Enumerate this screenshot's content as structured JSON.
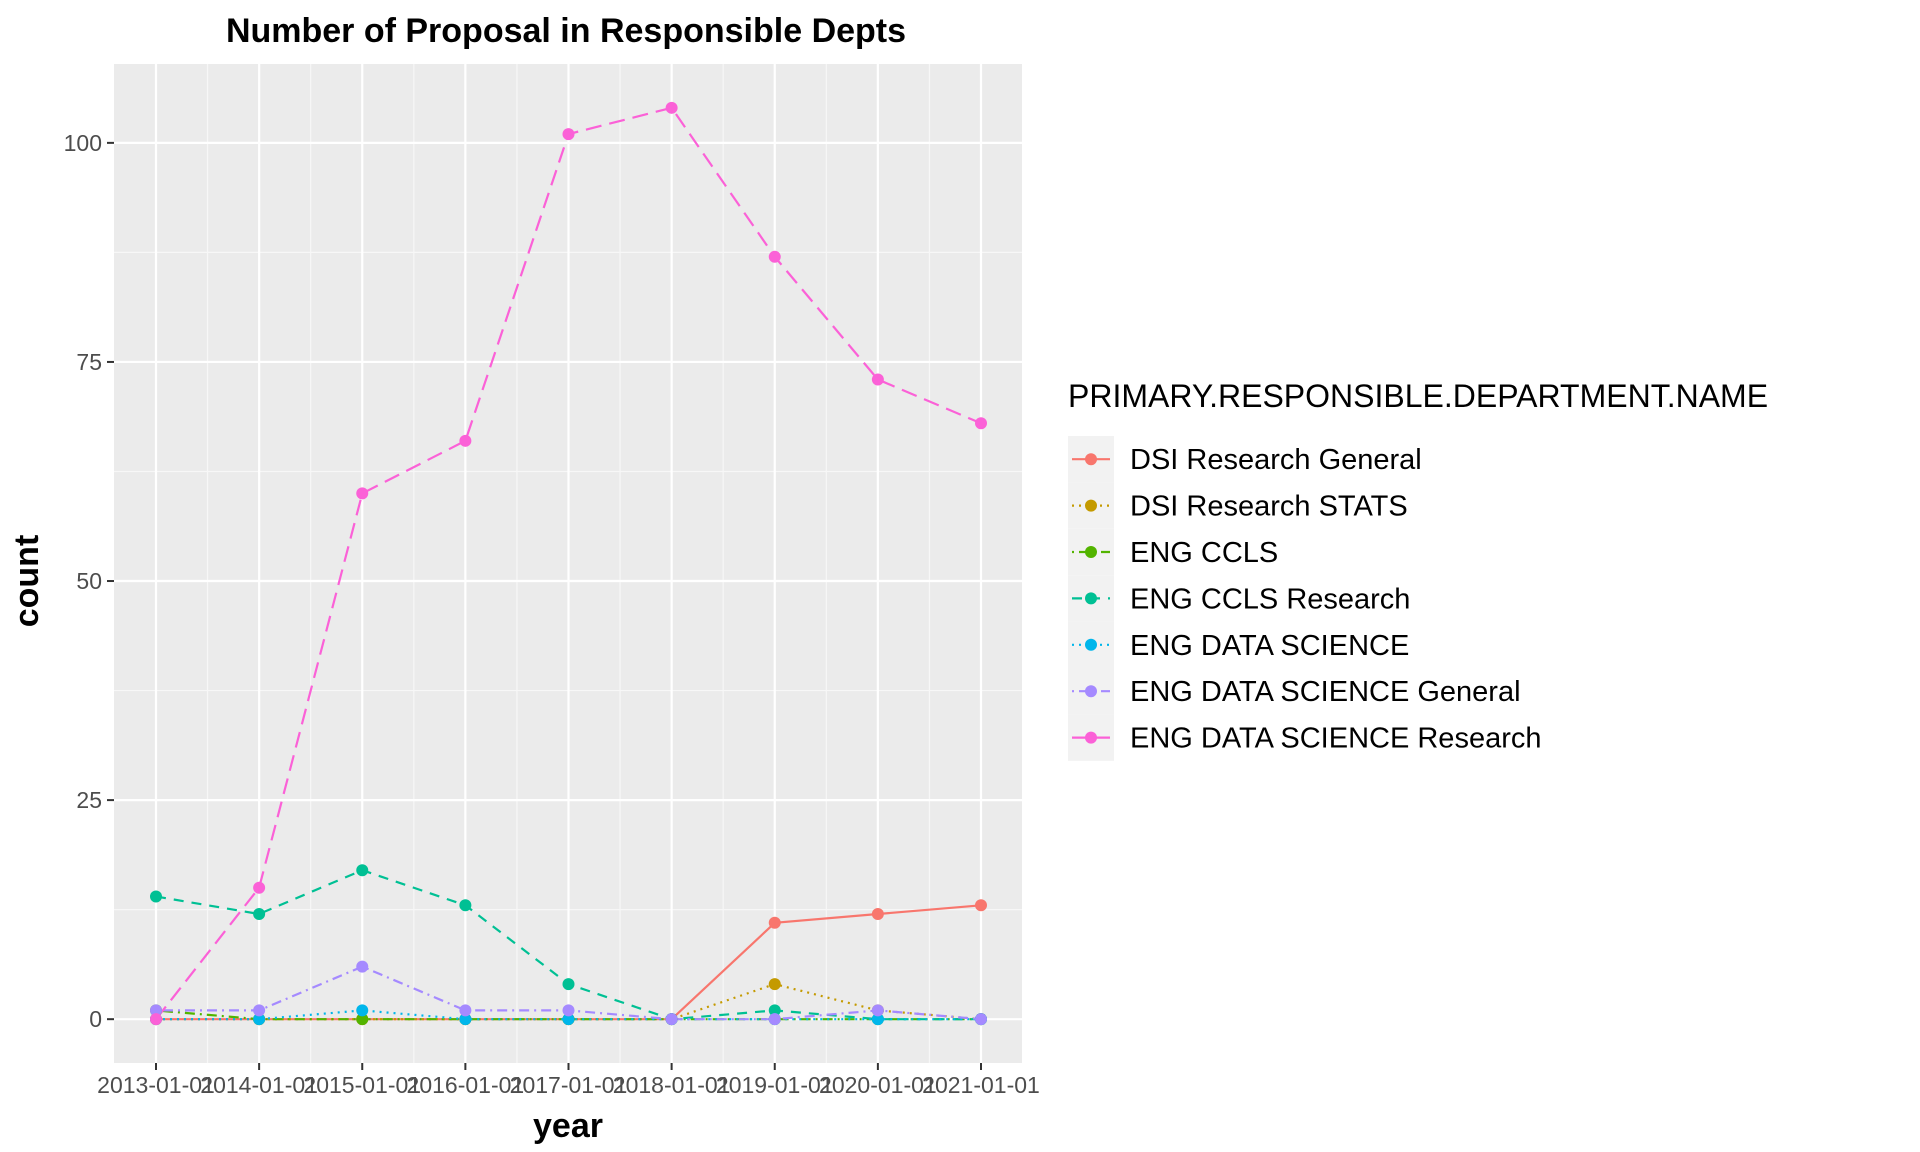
{
  "chart_data": {
    "type": "line",
    "title": "Number of Proposal in Responsible Depts",
    "xlabel": "year",
    "ylabel": "count",
    "x": [
      "2013-01-01",
      "2014-01-01",
      "2015-01-01",
      "2016-01-01",
      "2017-01-01",
      "2018-01-01",
      "2019-01-01",
      "2020-01-01",
      "2021-01-01"
    ],
    "y_ticks": [
      0,
      25,
      50,
      75,
      100
    ],
    "ylim": [
      -5,
      109
    ],
    "grid": true,
    "legend": {
      "title": "PRIMARY.RESPONSIBLE.DEPARTMENT.NAME",
      "placement": "right"
    },
    "series": [
      {
        "name": "DSI Research General",
        "color": "#F8766D",
        "linetype": "solid",
        "values": [
          0,
          0,
          0,
          0,
          0,
          0,
          11,
          12,
          13
        ]
      },
      {
        "name": "DSI Research STATS",
        "color": "#C49A00",
        "linetype": "dotted",
        "values": [
          0,
          0,
          0,
          0,
          0,
          0,
          4,
          1,
          0
        ]
      },
      {
        "name": "ENG CCLS",
        "color": "#53B400",
        "linetype": "dotdash",
        "values": [
          1,
          0,
          0,
          0,
          0,
          0,
          0,
          0,
          0
        ]
      },
      {
        "name": "ENG CCLS Research",
        "color": "#00C094",
        "linetype": "dashed",
        "values": [
          14,
          12,
          17,
          13,
          4,
          0,
          1,
          0,
          0
        ]
      },
      {
        "name": "ENG DATA SCIENCE",
        "color": "#00B6EB",
        "linetype": "dotted",
        "values": [
          0,
          0,
          1,
          0,
          0,
          0,
          0,
          0,
          0
        ]
      },
      {
        "name": "ENG DATA SCIENCE General",
        "color": "#A58AFF",
        "linetype": "dotdash",
        "values": [
          1,
          1,
          6,
          1,
          1,
          0,
          0,
          1,
          0
        ]
      },
      {
        "name": "ENG DATA SCIENCE Research",
        "color": "#FB61D7",
        "linetype": "longdash",
        "values": [
          0,
          15,
          60,
          66,
          101,
          104,
          87,
          73,
          68
        ]
      }
    ]
  }
}
